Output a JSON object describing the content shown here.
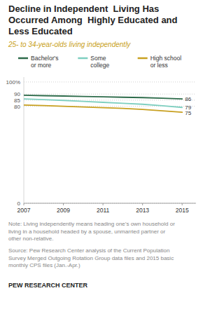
{
  "chart_data": {
    "type": "line",
    "title": "Decline in Independent  Living Has\nOccurred Among  Highly Educated and\nLess Educated",
    "subtitle": "25- to 34-year-olds living independently",
    "x": [
      2007,
      2008,
      2009,
      2010,
      2011,
      2012,
      2013,
      2014,
      2015
    ],
    "series": [
      {
        "name": "Bachelor's\nor more",
        "color": "#2d6b4a",
        "values": [
          89.0,
          88.7,
          88.4,
          88.0,
          87.7,
          87.4,
          87.1,
          86.6,
          86.0
        ]
      },
      {
        "name": "Some\ncollege",
        "color": "#7ecfc0",
        "values": [
          86.0,
          85.4,
          84.8,
          84.0,
          83.2,
          82.4,
          81.6,
          80.4,
          79.0
        ]
      },
      {
        "name": "High school\nor less",
        "color": "#c8a020",
        "values": [
          81.0,
          80.5,
          80.0,
          79.4,
          78.8,
          78.2,
          77.4,
          76.2,
          75.0
        ]
      }
    ],
    "xlim": [
      2007,
      2015.7
    ],
    "xticks": [
      2007,
      2009,
      2011,
      2013,
      2015
    ],
    "ylim": [
      0,
      104
    ],
    "yticks": [
      0,
      80,
      85,
      90,
      {
        "value": 100,
        "label": "100%"
      }
    ],
    "grid": true,
    "annotations": [
      {
        "value": 86,
        "label": "86"
      },
      {
        "value": 79,
        "label": "79"
      },
      {
        "value": 75,
        "label": "75"
      }
    ],
    "note": "Note: Living independently means heading one’s own household or\nliving in a household headed by a spouse, unmarried partner or\nother non-relative.",
    "source": "Source: Pew Research Center analysis of the Current Population\nSurvey Merged Outgoing Rotation Group data files and 2015 basic\nmonthly CPS files (Jan.-Apr.)",
    "brand": "PEW RESEARCH CENTER"
  }
}
